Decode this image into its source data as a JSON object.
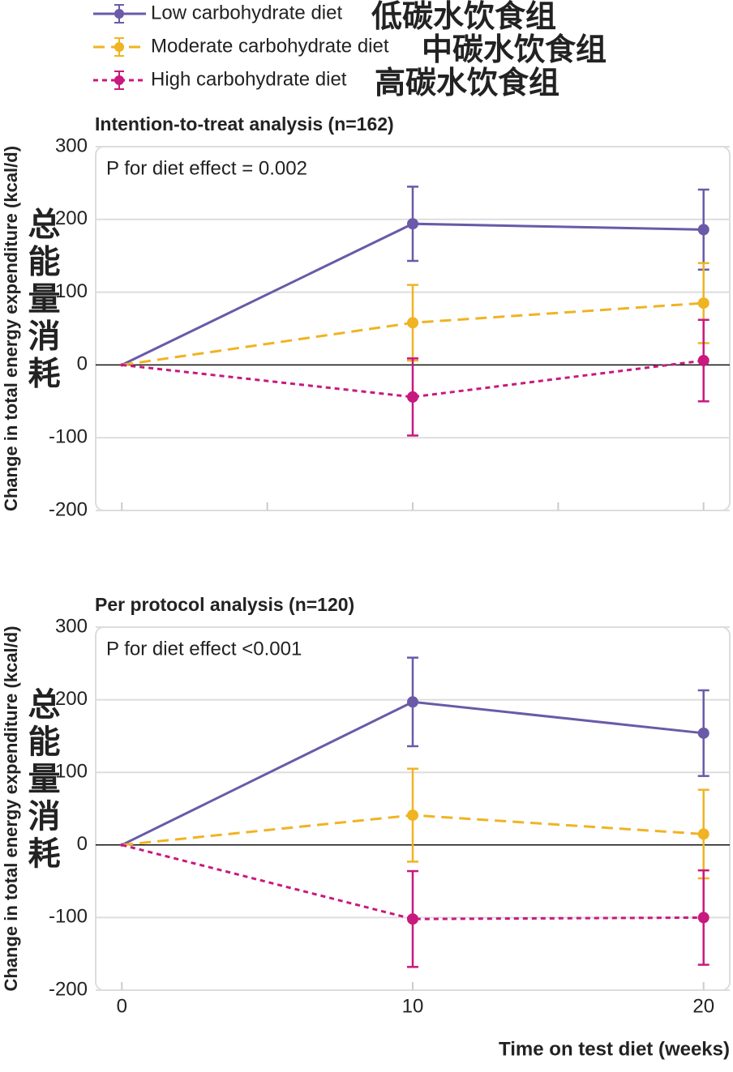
{
  "legend_labels_cn": [
    "低碳水饮食组",
    "中碳水饮食组",
    "高碳水饮食组"
  ],
  "chart_data": [
    {
      "type": "line",
      "title": "Intention-to-treat analysis (n=162)",
      "annotation": "P for diet effect = 0.002",
      "ylabel": "Change in total energy expenditure (kcal/d)",
      "ylabel_cn": "总能量消耗",
      "x": [
        0,
        10,
        20
      ],
      "xlim": [
        -0.9,
        20.9
      ],
      "xticks": [
        0,
        5,
        10,
        15,
        20
      ],
      "xtick_labels": false,
      "ylim": [
        -200,
        300
      ],
      "yticks": [
        -200,
        -100,
        0,
        100,
        200,
        300
      ],
      "grid": true,
      "series": [
        {
          "name": "Low carbohydrate diet",
          "color": "#6a5aa8",
          "dash": "solid",
          "values": [
            0,
            194,
            186
          ],
          "errors": [
            null,
            51,
            55
          ]
        },
        {
          "name": "Moderate carbohydrate diet",
          "color": "#f0b323",
          "dash": "dashed",
          "values": [
            0,
            58,
            85
          ],
          "errors": [
            null,
            52,
            55
          ]
        },
        {
          "name": "High carbohydrate diet",
          "color": "#c8197f",
          "dash": "dotted",
          "values": [
            0,
            -44,
            6
          ],
          "errors": [
            null,
            53,
            56
          ]
        }
      ]
    },
    {
      "type": "line",
      "title": "Per protocol analysis (n=120)",
      "annotation": "P for diet effect <0.001",
      "ylabel": "Change in total energy expenditure (kcal/d)",
      "ylabel_cn": "总能量消耗",
      "xlabel": "Time on test diet (weeks)",
      "x": [
        0,
        10,
        20
      ],
      "xlim": [
        -0.9,
        20.9
      ],
      "xticks": [
        0,
        10,
        20
      ],
      "xtick_labels": true,
      "ylim": [
        -200,
        300
      ],
      "yticks": [
        -200,
        -100,
        0,
        100,
        200,
        300
      ],
      "grid": true,
      "series": [
        {
          "color": "#6a5aa8",
          "dash": "solid",
          "values": [
            0,
            197,
            154
          ],
          "errors": [
            null,
            61,
            59
          ]
        },
        {
          "color": "#f0b323",
          "dash": "dashed",
          "values": [
            0,
            41,
            15
          ],
          "errors": [
            null,
            64,
            61
          ]
        },
        {
          "color": "#c8197f",
          "dash": "dotted",
          "values": [
            0,
            -102,
            -100
          ],
          "errors": [
            null,
            66,
            65
          ]
        }
      ]
    }
  ]
}
